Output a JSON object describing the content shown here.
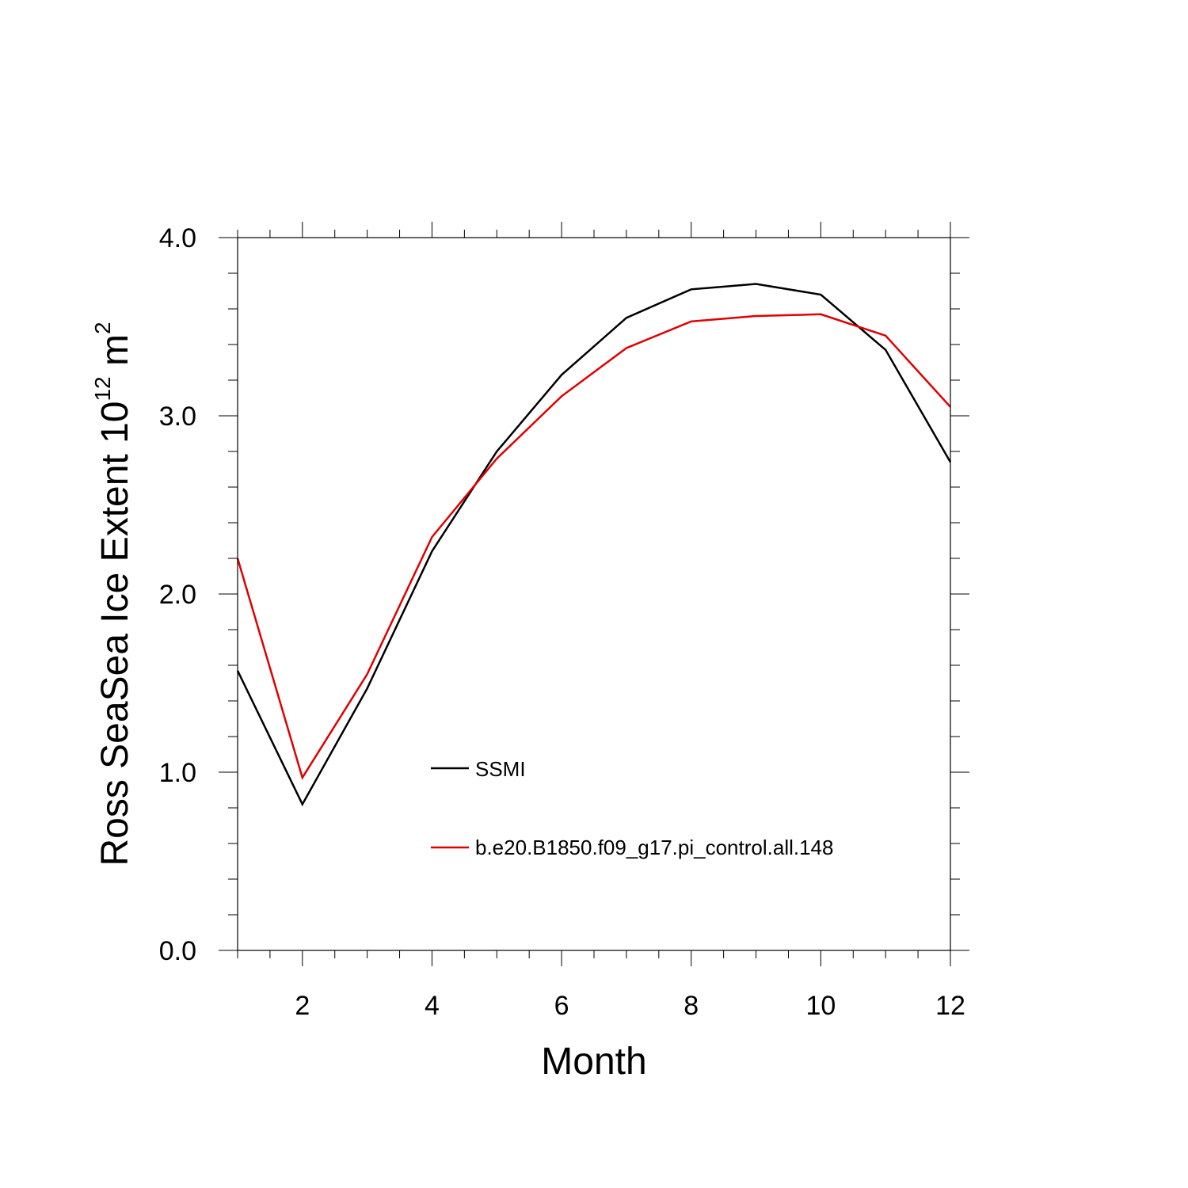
{
  "chart_data": {
    "type": "line",
    "xlabel": "Month",
    "ylabel": {
      "main": "Ross SeaSea Ice Extent 10",
      "exponent": "12",
      "unit": " m",
      "unit_exponent": "2"
    },
    "xlim": [
      1,
      12
    ],
    "ylim": [
      0,
      4
    ],
    "x_major_ticks": [
      2,
      4,
      6,
      8,
      10,
      12
    ],
    "x_tick_labels": [
      "2",
      "4",
      "6",
      "8",
      "10",
      "12"
    ],
    "y_major_ticks": [
      0,
      1,
      2,
      3,
      4
    ],
    "y_tick_labels": [
      "0.0",
      "1.0",
      "2.0",
      "3.0",
      "4.0"
    ],
    "x": [
      1,
      2,
      3,
      4,
      5,
      6,
      7,
      8,
      9,
      10,
      11,
      12
    ],
    "series": [
      {
        "name": "SSMI",
        "color": "#000000",
        "values": [
          1.57,
          0.82,
          1.47,
          2.24,
          2.8,
          3.23,
          3.55,
          3.71,
          3.74,
          3.68,
          3.37,
          2.74
        ]
      },
      {
        "name": "b.e20.B1850.f09_g17.pi_control.all.148",
        "color": "#e00000",
        "values": [
          2.2,
          0.97,
          1.55,
          2.32,
          2.76,
          3.11,
          3.38,
          3.53,
          3.56,
          3.57,
          3.45,
          3.05
        ]
      }
    ],
    "legend_position": "lower-center",
    "grid": false
  }
}
